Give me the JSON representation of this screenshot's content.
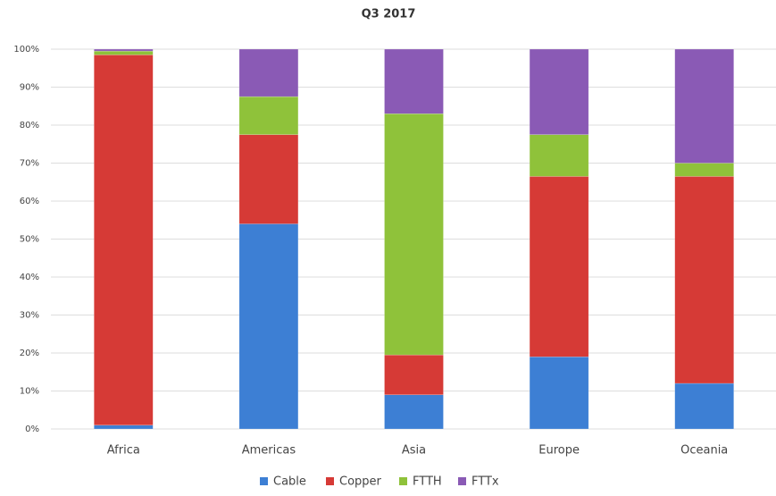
{
  "chart_data": {
    "type": "stacked_bar",
    "title": "Q3 2017",
    "categories": [
      "Africa",
      "Americas",
      "Asia",
      "Europe",
      "Oceania"
    ],
    "series": [
      {
        "name": "Cable",
        "color": "#3d7fd4",
        "values": [
          1,
          54,
          9,
          19,
          12
        ]
      },
      {
        "name": "Copper",
        "color": "#d63a36",
        "values": [
          97.5,
          23.5,
          10.5,
          47.5,
          54.5
        ]
      },
      {
        "name": "FTTH",
        "color": "#8fc23a",
        "values": [
          1,
          10,
          63.5,
          11,
          3.5
        ]
      },
      {
        "name": "FTTx",
        "color": "#8a5ab5",
        "values": [
          0.5,
          12.5,
          17,
          22.5,
          30
        ]
      }
    ],
    "ylim": [
      0,
      100
    ],
    "yticks": [
      {
        "value": 0,
        "label": "0%"
      },
      {
        "value": 10,
        "label": "10%"
      },
      {
        "value": 20,
        "label": "20%"
      },
      {
        "value": 30,
        "label": "30%"
      },
      {
        "value": 40,
        "label": "40%"
      },
      {
        "value": 50,
        "label": "50%"
      },
      {
        "value": 60,
        "label": "60%"
      },
      {
        "value": 70,
        "label": "70%"
      },
      {
        "value": 80,
        "label": "80%"
      },
      {
        "value": 90,
        "label": "90%"
      },
      {
        "value": 100,
        "label": "100%"
      }
    ],
    "grid": true,
    "legend": "bottom"
  }
}
